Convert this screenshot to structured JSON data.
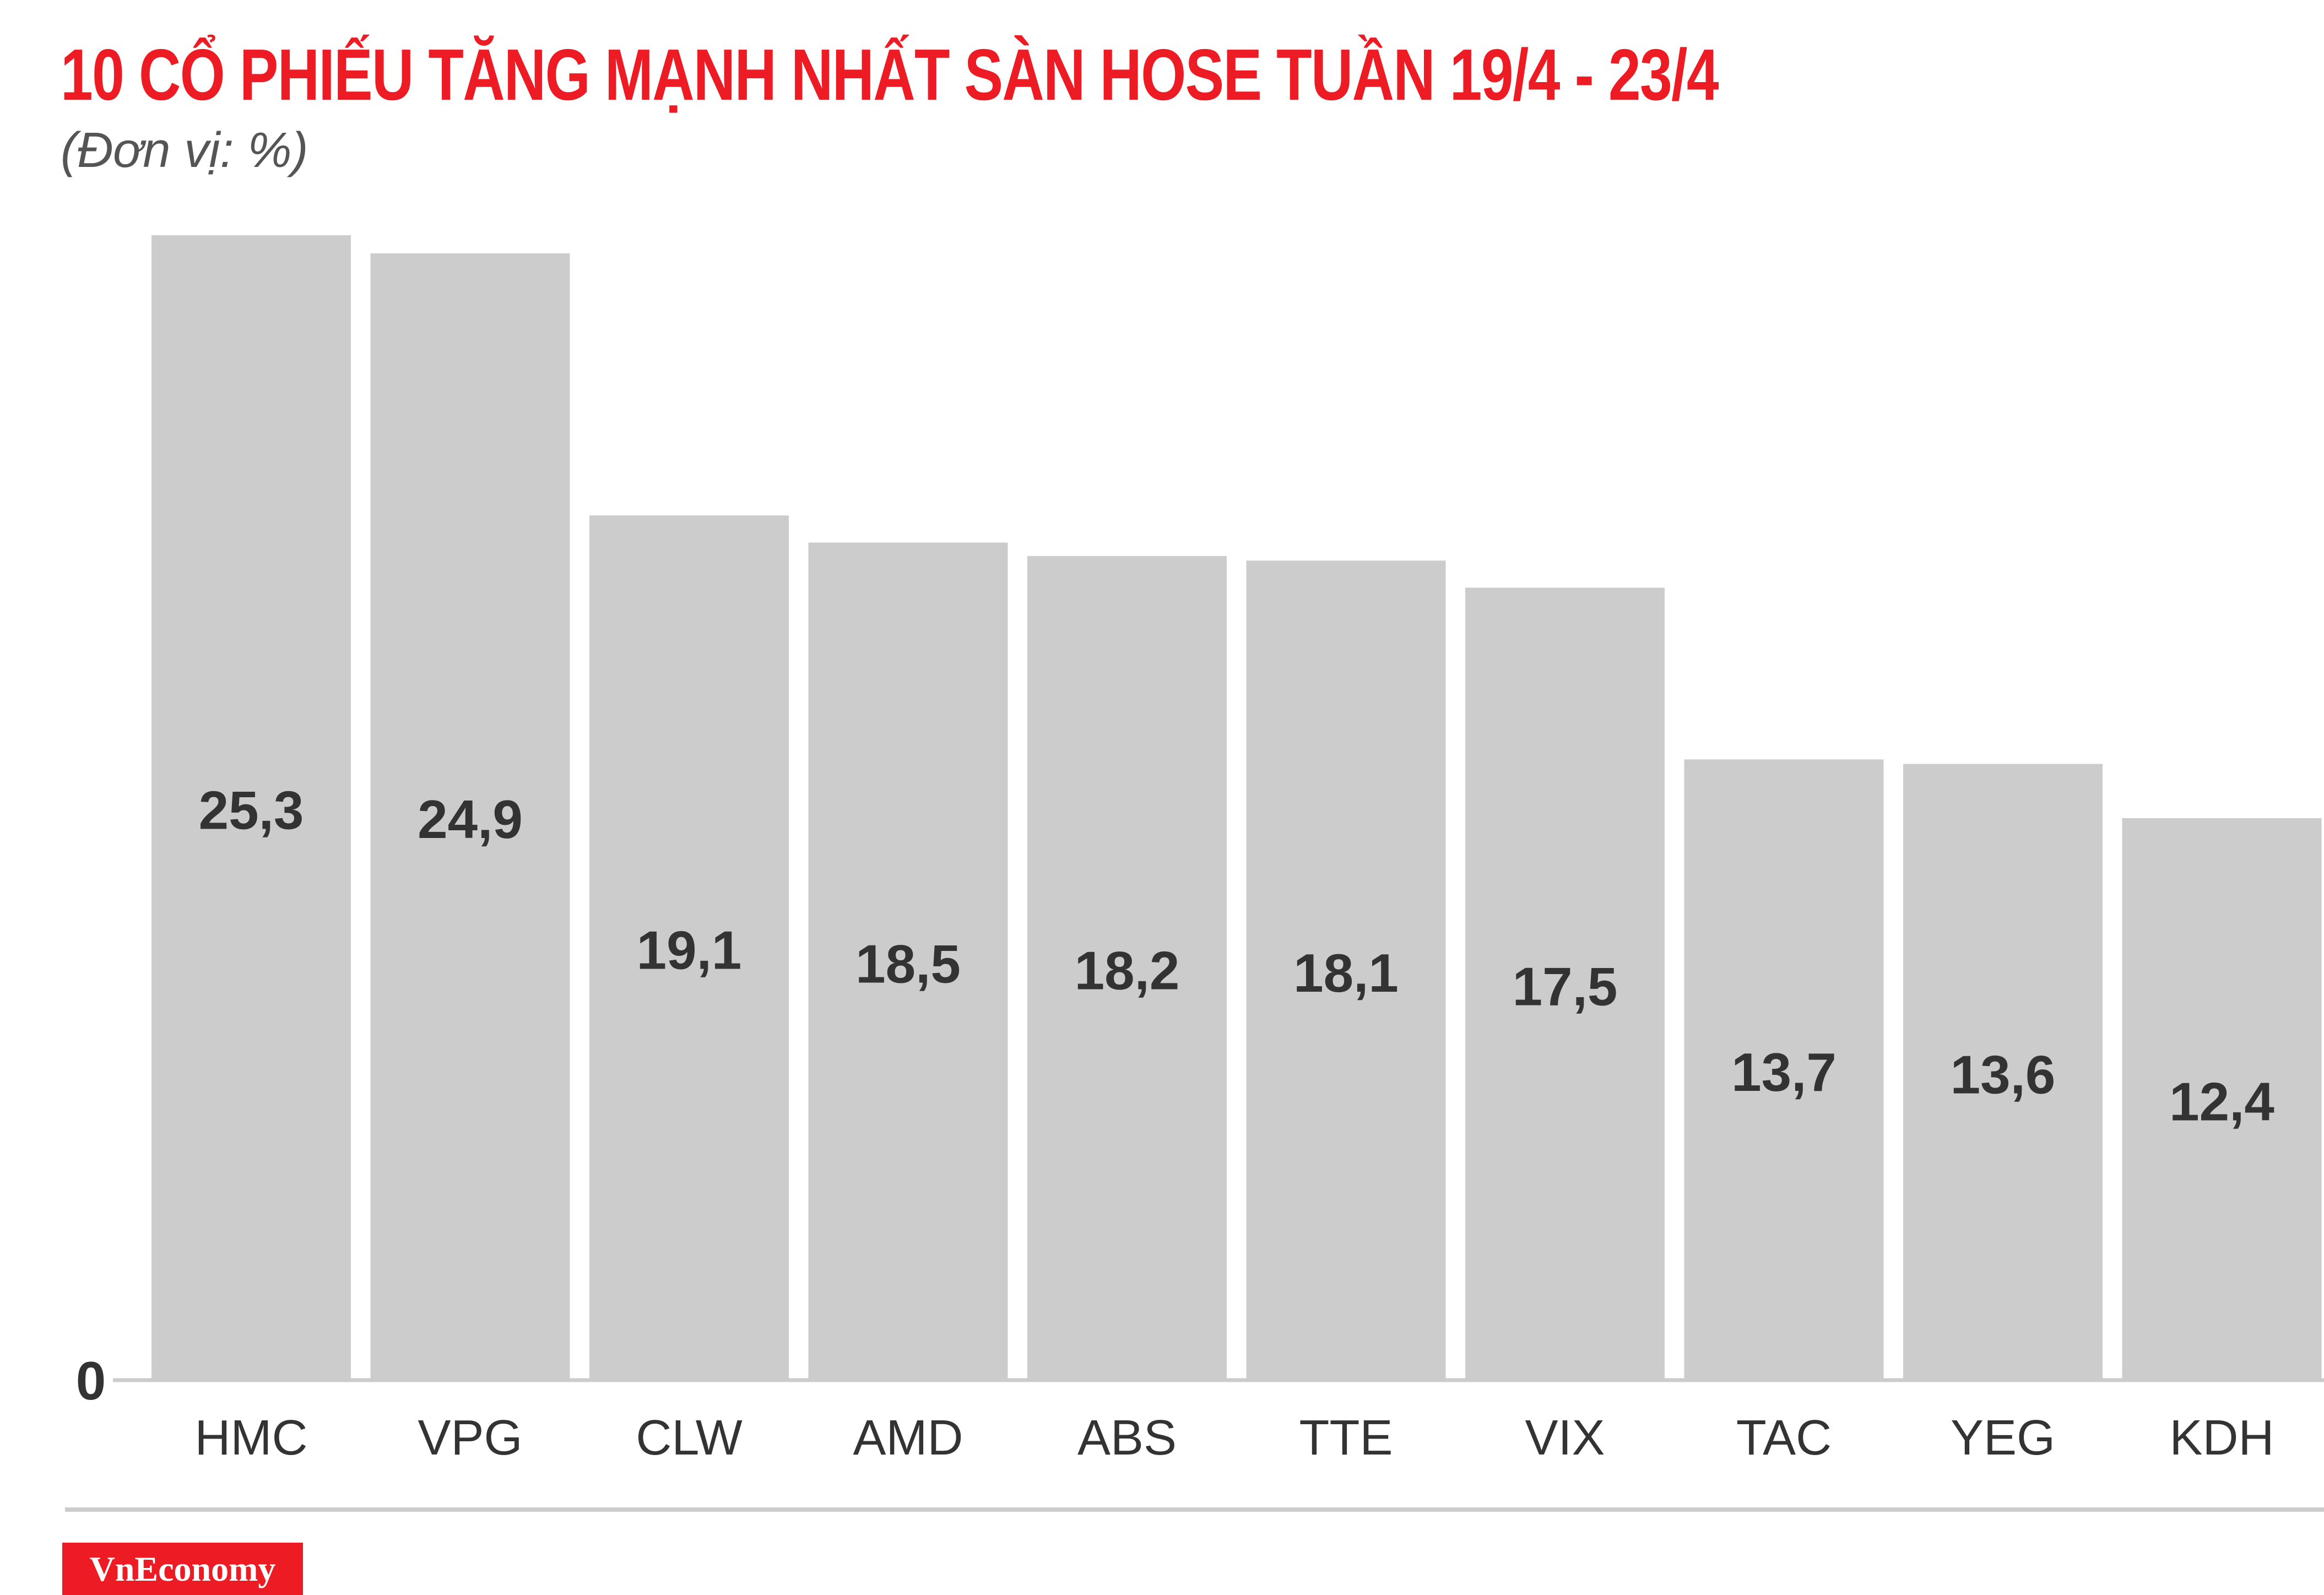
{
  "header": {
    "title": "10 CỔ PHIẾU TĂNG MẠNH NHẤT SÀN HOSE TUẦN 19/4 - 23/4",
    "subtitle": "(Đơn vị: %)"
  },
  "brand": {
    "logo_text": "VnEconomy"
  },
  "colors": {
    "accent": "#ed1c24",
    "bar": "#cccccc",
    "axis": "#cccccc",
    "label": "#333333",
    "subtitle": "#555555"
  },
  "chart_data": {
    "type": "bar",
    "title": "10 CỔ PHIẾU TĂNG MẠNH NHẤT SÀN HOSE TUẦN 19/4 - 23/4",
    "subtitle": "(Đơn vị: %)",
    "categories": [
      "HMC",
      "VPG",
      "CLW",
      "AMD",
      "ABS",
      "TTE",
      "VIX",
      "TAC",
      "YEG",
      "KDH"
    ],
    "values": [
      25.3,
      24.9,
      19.1,
      18.5,
      18.2,
      18.1,
      17.5,
      13.7,
      13.6,
      12.4
    ],
    "value_labels": [
      "25,3",
      "24,9",
      "19,1",
      "18,5",
      "18,2",
      "18,1",
      "17,5",
      "13,7",
      "13,6",
      "12,4"
    ],
    "y_tick_labels": [
      "0"
    ],
    "ylim": [
      0,
      25.3
    ],
    "xlabel": "",
    "ylabel": "",
    "grid": false,
    "legend": "none"
  }
}
